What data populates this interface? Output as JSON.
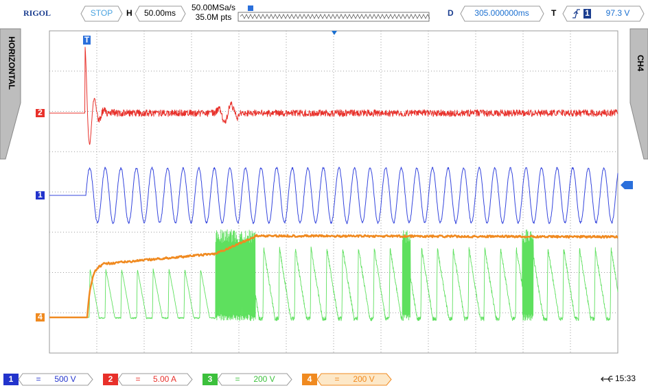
{
  "header": {
    "brand": "RIGOL",
    "run_state": "STOP",
    "timebase_label": "H",
    "timebase": "50.00ms",
    "sample_rate": "50.00MSa/s",
    "memory_depth": "35.0M pts",
    "delay_label": "D",
    "delay": "305.000000ms",
    "trigger_label": "T",
    "trigger_source": "1",
    "trigger_level": "97.3 V"
  },
  "side_tabs": {
    "left": "HORIZONTAL",
    "right": "CH4"
  },
  "trace_markers": {
    "trigger": "T",
    "ch2": "2",
    "ch1": "1",
    "ch4": "4"
  },
  "channels": [
    {
      "number": "1",
      "coupling": "=",
      "scale": "500 V"
    },
    {
      "number": "2",
      "coupling": "=",
      "scale": "5.00 A"
    },
    {
      "number": "3",
      "coupling": "=",
      "scale": "200 V"
    },
    {
      "number": "4",
      "coupling": "=",
      "scale": "200 V"
    }
  ],
  "status": {
    "time": "15:33"
  }
}
